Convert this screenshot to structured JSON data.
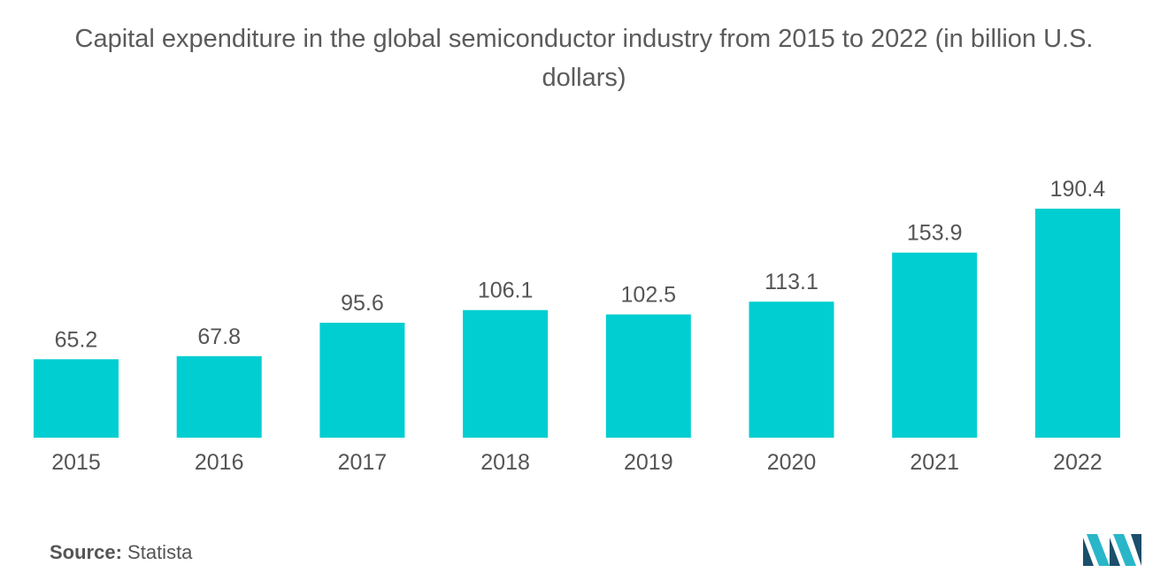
{
  "title_line1": "Capital expenditure in the global semiconductor industry from 2015 to 2022 (in billion U.S.",
  "title_line2": "dollars)",
  "source_label": "Source:",
  "source_value": "Statista",
  "logo_icon": "mordor-intelligence-logo-icon",
  "colors": {
    "bar": "#00ced1",
    "text": "#555555",
    "logo_dark": "#1b4f6b",
    "logo_light": "#29b6c8"
  },
  "chart_data": {
    "type": "bar",
    "title": "Capital expenditure in the global semiconductor industry from 2015 to 2022 (in billion U.S. dollars)",
    "categories": [
      "2015",
      "2016",
      "2017",
      "2018",
      "2019",
      "2020",
      "2021",
      "2022"
    ],
    "values": [
      65.2,
      67.8,
      95.6,
      106.1,
      102.5,
      113.1,
      153.9,
      190.4
    ],
    "value_labels": [
      "65.2",
      "67.8",
      "95.6",
      "106.1",
      "102.5",
      "113.1",
      "153.9",
      "190.4"
    ],
    "xlabel": "",
    "ylabel": "",
    "ylim": [
      0,
      190.4
    ],
    "grid": false,
    "legend": "none"
  }
}
